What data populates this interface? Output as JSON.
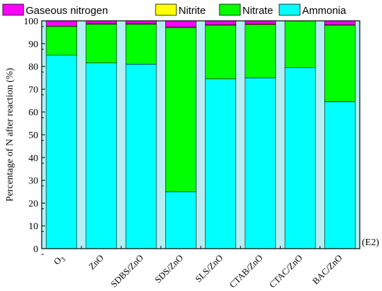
{
  "chart_data": {
    "type": "bar",
    "stacked": true,
    "categories": [
      "O3",
      "ZnO",
      "SDBS/ZnO",
      "SDS/ZnO",
      "SLS/ZnO",
      "CTAB/ZnO",
      "CTAC/ZnO",
      "BAC/ZnO"
    ],
    "series": [
      {
        "name": "Ammonia",
        "color": "#00FFFF",
        "values": [
          85,
          81.5,
          81,
          25,
          74.5,
          75,
          79.5,
          64.5
        ]
      },
      {
        "name": "Nitrate",
        "color": "#00FF00",
        "values": [
          12.5,
          17,
          17.5,
          72,
          23.5,
          23.3,
          20.5,
          33.5
        ]
      },
      {
        "name": "Nitrite",
        "color": "#FFFF00",
        "values": [
          0.3,
          0.3,
          0.3,
          0.3,
          0.3,
          0.3,
          0,
          0.3
        ]
      },
      {
        "name": "Gaseous nitrogen",
        "color": "#FF00FF",
        "values": [
          2.2,
          1.2,
          1.2,
          2.7,
          1.7,
          1.4,
          0,
          1.7
        ]
      }
    ],
    "legend_order": [
      "Gaseous nitrogen",
      "Nitrite",
      "Nitrate",
      "Ammonia"
    ],
    "ylabel": "Percentage of N after reaction (%)",
    "xlabel": "",
    "ylim": [
      0,
      100
    ],
    "yticks": [
      0,
      10,
      20,
      30,
      40,
      50,
      60,
      70,
      80,
      90,
      100
    ],
    "annotation": "(E2)",
    "grid": false,
    "legend_position": "top"
  }
}
